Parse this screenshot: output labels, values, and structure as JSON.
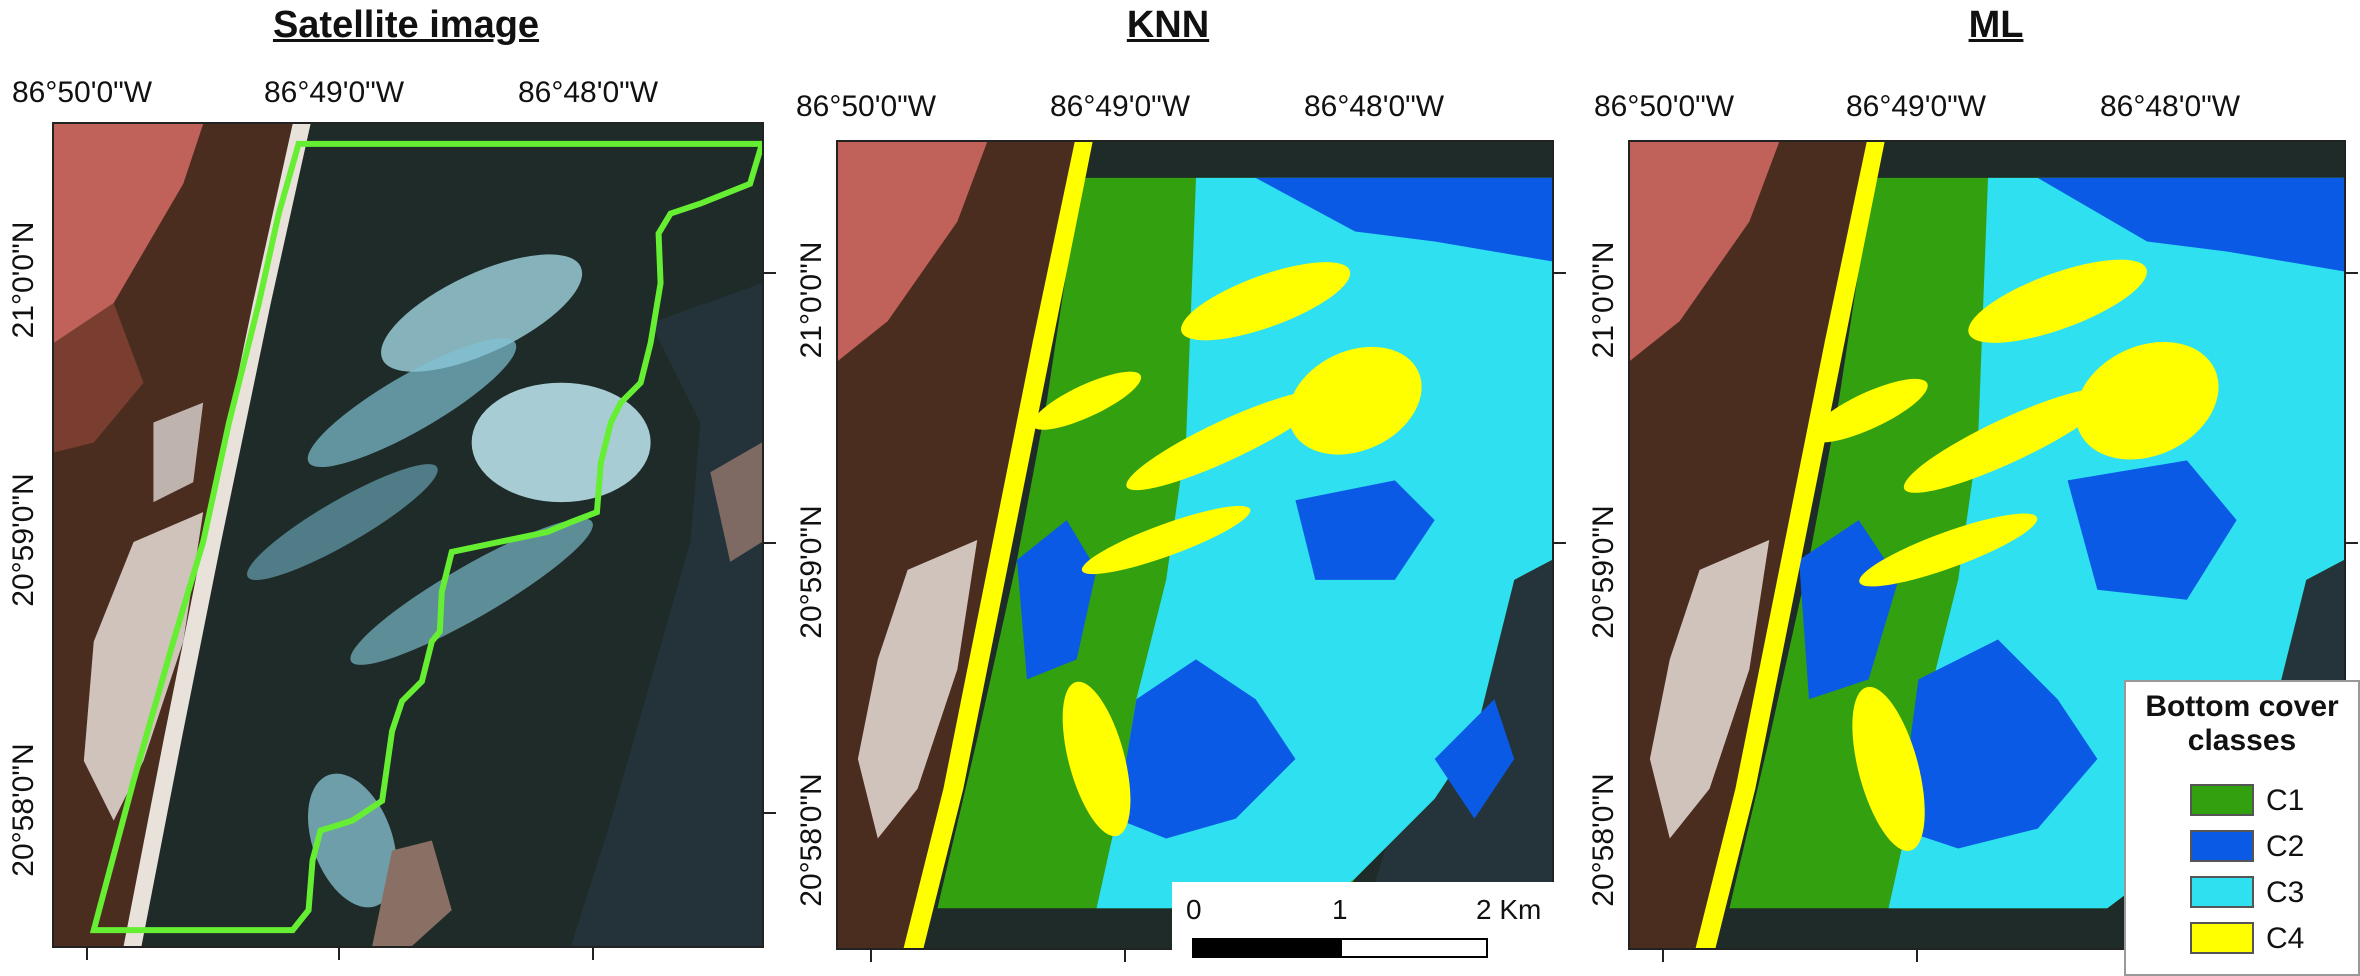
{
  "panels": [
    {
      "title": "Satellite image"
    },
    {
      "title": "KNN"
    },
    {
      "title": "ML"
    }
  ],
  "axes": {
    "longitude_labels": [
      "86°50'0\"W",
      "86°49'0\"W",
      "86°48'0\"W"
    ],
    "latitude_labels": [
      "21°0'0\"N",
      "20°59'0\"N",
      "20°58'0\"N"
    ]
  },
  "legend": {
    "title_line1": "Bottom cover",
    "title_line2": "classes",
    "items": [
      {
        "label": "C1",
        "color": "#33a00f"
      },
      {
        "label": "C2",
        "color": "#0a5ae6"
      },
      {
        "label": "C3",
        "color": "#2ee0f0"
      },
      {
        "label": "C4",
        "color": "#ffff00"
      }
    ]
  },
  "scalebar": {
    "labels": [
      "0",
      "1",
      "2 Km"
    ]
  },
  "colors": {
    "study_area_outline": "#66ee33",
    "land": "#4a2c1e",
    "land_reddish": "#c0605a",
    "water_dark": "#1d2a25",
    "shallow_light": "#b8e8f0"
  }
}
